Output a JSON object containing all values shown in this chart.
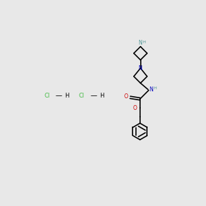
{
  "background_color": "#e8e8e8",
  "bond_color": "#000000",
  "N_color": "#0000bb",
  "NH_color": "#559999",
  "O_color": "#cc0000",
  "Cl_color": "#44bb44",
  "line_width": 1.2,
  "figsize": [
    3.0,
    3.0
  ],
  "dpi": 100,
  "xlim": [
    0,
    10
  ],
  "ylim": [
    0,
    10
  ]
}
